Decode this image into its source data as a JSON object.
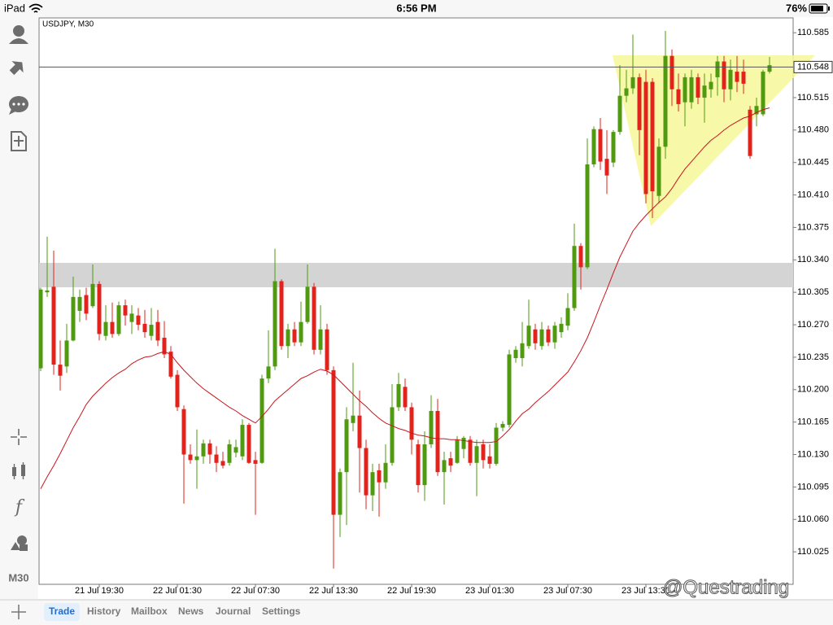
{
  "status_bar": {
    "device": "iPad",
    "time": "6:56 PM",
    "battery": "76%"
  },
  "sidebar": {
    "timeframe": "M30"
  },
  "tabs": [
    "Trade",
    "History",
    "Mailbox",
    "News",
    "Journal",
    "Settings"
  ],
  "active_tab": 0,
  "watermark": "@Questrading",
  "chart_data": {
    "type": "candlestick",
    "title": "USDJPY, M30",
    "up_color": "#4f9a0f",
    "down_color": "#e3231b",
    "ylim": [
      109.99,
      110.601
    ],
    "yticks": [
      110.585,
      110.515,
      {
        "value": 110.48,
        "label": "110.480"
      },
      110.445,
      {
        "value": 110.41,
        "label": "110.410"
      },
      110.375,
      {
        "value": 110.34,
        "label": "110.340"
      },
      110.305,
      {
        "value": 110.27,
        "label": "110.270"
      },
      110.235,
      {
        "value": 110.2,
        "label": "110.200"
      },
      110.165,
      {
        "value": 110.13,
        "label": "110.130"
      },
      110.095,
      {
        "value": 110.06,
        "label": "110.060"
      },
      110.025
    ],
    "last_price": 110.548,
    "categories": [
      null,
      null,
      null,
      null,
      null,
      null,
      null,
      null,
      null,
      "21 Jul 19:30",
      null,
      null,
      null,
      null,
      null,
      null,
      null,
      null,
      null,
      null,
      null,
      "22 Jul 01:30",
      null,
      null,
      null,
      null,
      null,
      null,
      null,
      null,
      null,
      null,
      null,
      "22 Jul 07:30",
      null,
      null,
      null,
      null,
      null,
      null,
      null,
      null,
      null,
      null,
      null,
      "22 Jul 13:30",
      null,
      null,
      null,
      null,
      null,
      null,
      null,
      null,
      null,
      null,
      null,
      "22 Jul 19:30",
      null,
      null,
      null,
      null,
      null,
      null,
      null,
      null,
      null,
      null,
      null,
      "23 Jul 01:30",
      null,
      null,
      null,
      null,
      null,
      null,
      null,
      null,
      null,
      null,
      null,
      "23 Jul 07:30",
      null,
      null,
      null,
      null,
      null,
      null,
      null,
      null,
      null,
      null,
      null,
      "23 Jul 13:30",
      null,
      null,
      null,
      null,
      null,
      null,
      null,
      null,
      null,
      null,
      null,
      null,
      null,
      null,
      null,
      null,
      null,
      null,
      null
    ],
    "open": [
      110.223,
      110.305,
      110.311,
      110.227,
      110.225,
      110.253,
      110.285,
      110.302,
      110.29,
      110.314,
      110.258,
      110.273,
      110.26,
      110.291,
      110.273,
      110.28,
      110.271,
      110.258,
      110.273,
      110.256,
      110.241,
      110.216,
      110.179,
      110.13,
      110.124,
      110.128,
      110.142,
      110.13,
      110.123,
      110.121,
      110.132,
      110.128,
      110.162,
      110.124,
      110.121,
      110.212,
      110.225,
      110.317,
      110.247,
      110.265,
      110.251,
      110.273,
      110.311,
      110.243,
      110.265,
      110.221,
      110.065,
      110.111,
      110.164,
      110.172,
      110.137,
      110.086,
      110.113,
      110.1,
      110.121,
      110.181,
      110.203,
      110.181,
      110.141,
      110.097,
      110.141,
      110.177,
      110.111,
      110.126,
      110.121,
      110.136,
      110.146,
      110.121,
      110.141,
      110.128,
      110.12,
      110.159,
      110.162,
      110.234,
      110.234,
      110.247,
      110.265,
      110.247,
      110.265,
      110.251,
      110.262,
      110.269,
      110.288,
      110.355,
      110.332,
      110.443,
      110.481,
      110.449,
      110.445,
      110.478,
      110.517,
      110.525,
      110.537,
      110.532,
      110.532,
      110.409,
      110.462,
      110.56,
      110.524,
      110.51,
      110.51,
      110.537,
      110.515,
      110.524,
      110.537,
      110.554,
      110.524,
      110.543,
      110.543,
      110.502,
      110.497,
      110.497,
      110.543
    ],
    "high": [
      110.31,
      110.365,
      110.35,
      110.253,
      110.271,
      110.322,
      110.308,
      110.31,
      110.335,
      110.317,
      110.291,
      110.294,
      110.295,
      110.297,
      110.291,
      110.288,
      110.286,
      110.288,
      110.286,
      110.274,
      110.247,
      110.221,
      110.183,
      110.141,
      110.157,
      110.146,
      110.146,
      110.139,
      110.133,
      110.146,
      110.146,
      110.168,
      110.164,
      110.133,
      110.216,
      110.264,
      110.352,
      110.319,
      110.271,
      110.273,
      110.295,
      110.335,
      110.315,
      110.291,
      110.271,
      110.225,
      110.115,
      110.181,
      110.229,
      110.199,
      110.146,
      110.12,
      110.12,
      110.141,
      110.206,
      110.218,
      110.212,
      110.186,
      110.146,
      110.155,
      110.194,
      110.19,
      110.133,
      110.133,
      110.15,
      110.15,
      110.15,
      110.146,
      110.146,
      110.141,
      110.164,
      110.166,
      110.243,
      110.247,
      110.273,
      110.297,
      110.271,
      110.273,
      110.269,
      110.273,
      110.278,
      110.304,
      110.379,
      110.358,
      110.471,
      110.484,
      110.493,
      110.48,
      110.48,
      110.55,
      110.545,
      110.583,
      110.541,
      110.545,
      110.536,
      110.471,
      110.587,
      110.567,
      110.541,
      110.541,
      110.545,
      110.541,
      110.541,
      110.541,
      110.56,
      110.56,
      110.556,
      110.56,
      110.556,
      110.506,
      110.515,
      110.545,
      110.559
    ],
    "low": [
      110.22,
      110.3,
      110.216,
      110.199,
      110.218,
      110.252,
      110.273,
      110.275,
      110.288,
      110.253,
      110.253,
      110.256,
      110.258,
      110.269,
      110.26,
      110.264,
      110.256,
      110.253,
      110.247,
      110.234,
      110.212,
      110.177,
      110.077,
      110.12,
      110.093,
      110.12,
      110.12,
      110.111,
      110.115,
      110.118,
      110.127,
      110.124,
      110.12,
      110.065,
      110.12,
      110.207,
      110.221,
      110.243,
      110.234,
      110.247,
      110.247,
      110.271,
      110.238,
      110.238,
      110.216,
      110.007,
      110.041,
      110.054,
      110.155,
      110.089,
      110.071,
      110.069,
      110.063,
      110.093,
      110.118,
      110.177,
      110.177,
      110.13,
      110.089,
      110.08,
      110.137,
      110.107,
      110.076,
      110.111,
      110.12,
      110.126,
      110.118,
      110.085,
      110.115,
      110.115,
      110.118,
      110.155,
      110.159,
      110.229,
      110.225,
      110.244,
      110.243,
      110.243,
      110.247,
      110.244,
      110.256,
      110.264,
      110.285,
      110.308,
      110.33,
      110.44,
      110.437,
      110.411,
      110.44,
      110.475,
      110.51,
      110.519,
      110.453,
      110.401,
      110.385,
      110.401,
      110.449,
      110.506,
      110.5,
      110.484,
      110.503,
      110.508,
      110.488,
      110.515,
      110.517,
      110.51,
      110.512,
      110.521,
      110.519,
      110.449,
      110.484,
      110.495,
      110.541
    ],
    "close": [
      110.308,
      110.307,
      110.227,
      110.215,
      110.253,
      110.3,
      110.3,
      110.282,
      110.314,
      110.26,
      110.273,
      110.26,
      110.291,
      110.28,
      110.282,
      110.27,
      110.262,
      110.27,
      110.253,
      110.238,
      110.214,
      110.181,
      110.13,
      110.124,
      110.128,
      110.142,
      110.13,
      110.121,
      110.118,
      110.141,
      110.138,
      110.162,
      110.121,
      110.12,
      110.212,
      110.225,
      110.317,
      110.247,
      110.265,
      110.251,
      110.273,
      110.311,
      110.243,
      110.265,
      110.221,
      110.065,
      110.111,
      110.168,
      110.172,
      110.137,
      110.086,
      110.111,
      110.1,
      110.121,
      110.181,
      110.206,
      110.181,
      110.146,
      110.097,
      110.141,
      110.177,
      110.111,
      110.124,
      110.118,
      110.146,
      110.148,
      110.121,
      110.139,
      110.124,
      110.12,
      110.159,
      110.163,
      110.238,
      110.243,
      110.25,
      110.269,
      110.25,
      110.265,
      110.251,
      110.269,
      110.271,
      110.288,
      110.355,
      110.332,
      110.443,
      110.481,
      110.446,
      110.431,
      110.478,
      110.517,
      110.525,
      110.537,
      110.48,
      110.411,
      110.414,
      110.462,
      110.56,
      110.524,
      110.508,
      110.537,
      110.537,
      110.515,
      110.528,
      110.532,
      110.554,
      110.524,
      110.545,
      110.532,
      110.53,
      110.452,
      110.506,
      110.543,
      110.55
    ],
    "ma": {
      "color": "#c8161d",
      "values": [
        110.093,
        110.106,
        110.118,
        110.131,
        110.145,
        110.159,
        110.171,
        110.184,
        110.193,
        110.2,
        110.207,
        110.213,
        110.218,
        110.222,
        110.228,
        110.232,
        110.235,
        110.236,
        110.239,
        110.241,
        110.238,
        110.229,
        110.221,
        110.214,
        110.207,
        110.201,
        110.196,
        110.191,
        110.186,
        110.181,
        110.177,
        110.172,
        110.168,
        110.164,
        110.171,
        110.179,
        110.188,
        110.194,
        110.2,
        110.206,
        110.212,
        110.215,
        110.219,
        110.222,
        110.22,
        110.216,
        110.209,
        110.202,
        110.195,
        110.188,
        110.182,
        110.175,
        110.169,
        110.164,
        110.161,
        110.158,
        110.156,
        110.153,
        110.151,
        110.15,
        110.148,
        110.147,
        110.147,
        110.146,
        110.146,
        110.145,
        110.144,
        110.143,
        110.143,
        110.143,
        110.144,
        110.15,
        110.157,
        110.166,
        110.174,
        110.179,
        110.186,
        110.192,
        110.198,
        110.205,
        110.212,
        110.219,
        110.23,
        110.242,
        110.256,
        110.273,
        110.291,
        110.308,
        110.326,
        110.343,
        110.357,
        110.371,
        110.38,
        110.388,
        110.395,
        110.402,
        110.408,
        110.417,
        110.428,
        110.438,
        110.446,
        110.454,
        110.462,
        110.469,
        110.474,
        110.48,
        110.485,
        110.489,
        110.493,
        110.495,
        110.499,
        110.502,
        110.504
      ]
    }
  }
}
